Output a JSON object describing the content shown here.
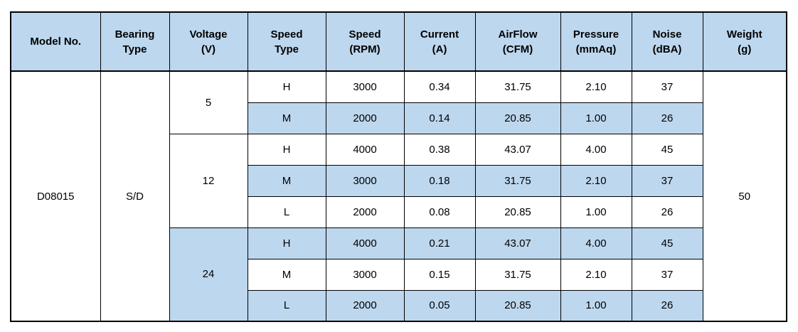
{
  "table": {
    "headers": [
      {
        "key": "model-no",
        "label": "Model No."
      },
      {
        "key": "bearing-type",
        "label": "Bearing\nType"
      },
      {
        "key": "voltage",
        "label": "Voltage\n(V)"
      },
      {
        "key": "speed-type",
        "label": "Speed\nType"
      },
      {
        "key": "speed-rpm",
        "label": "Speed\n(RPM)"
      },
      {
        "key": "current",
        "label": "Current\n(A)"
      },
      {
        "key": "airflow",
        "label": "AirFlow\n(CFM)"
      },
      {
        "key": "pressure",
        "label": "Pressure\n(mmAq)"
      },
      {
        "key": "noise",
        "label": "Noise\n(dBA)"
      },
      {
        "key": "weight",
        "label": "Weight\n(g)"
      }
    ],
    "model_no": "D08015",
    "bearing_type": "S/D",
    "weight": "50",
    "voltage_groups": [
      {
        "voltage": "5",
        "row_span": 2
      },
      {
        "voltage": "12",
        "row_span": 3
      },
      {
        "voltage": "24",
        "row_span": 3
      }
    ],
    "rows": [
      {
        "voltage_group": 0,
        "speed_type": "H",
        "speed_rpm": "3000",
        "current": "0.34",
        "airflow": "31.75",
        "pressure": "2.10",
        "noise": "37",
        "shaded": false
      },
      {
        "speed_type": "M",
        "speed_rpm": "2000",
        "current": "0.14",
        "airflow": "20.85",
        "pressure": "1.00",
        "noise": "26",
        "shaded": true
      },
      {
        "voltage_group": 1,
        "speed_type": "H",
        "speed_rpm": "4000",
        "current": "0.38",
        "airflow": "43.07",
        "pressure": "4.00",
        "noise": "45",
        "shaded": false
      },
      {
        "speed_type": "M",
        "speed_rpm": "3000",
        "current": "0.18",
        "airflow": "31.75",
        "pressure": "2.10",
        "noise": "37",
        "shaded": true
      },
      {
        "speed_type": "L",
        "speed_rpm": "2000",
        "current": "0.08",
        "airflow": "20.85",
        "pressure": "1.00",
        "noise": "26",
        "shaded": false
      },
      {
        "voltage_group": 2,
        "speed_type": "H",
        "speed_rpm": "4000",
        "current": "0.21",
        "airflow": "43.07",
        "pressure": "4.00",
        "noise": "45",
        "shaded": true
      },
      {
        "speed_type": "M",
        "speed_rpm": "3000",
        "current": "0.15",
        "airflow": "31.75",
        "pressure": "2.10",
        "noise": "37",
        "shaded": false
      },
      {
        "speed_type": "L",
        "speed_rpm": "2000",
        "current": "0.05",
        "airflow": "20.85",
        "pressure": "1.00",
        "noise": "26",
        "shaded": true
      }
    ],
    "colors": {
      "header_bg": "#BDD7EE",
      "shaded_row_bg": "#BDD7EE",
      "border": "#000000"
    }
  }
}
